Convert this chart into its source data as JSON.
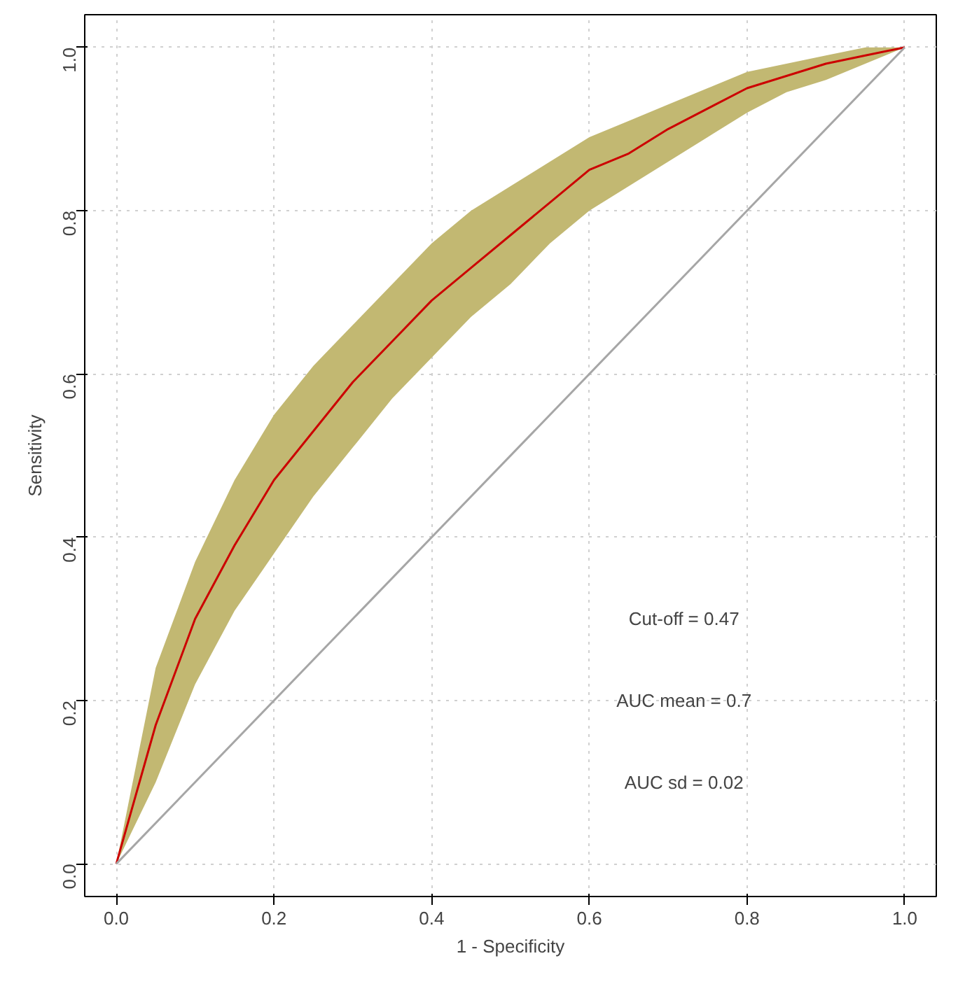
{
  "chart_data": {
    "type": "line",
    "xlabel": "1 - Specificity",
    "ylabel": "Sensitivity",
    "x": [
      0,
      0.05,
      0.1,
      0.15,
      0.2,
      0.25,
      0.3,
      0.35,
      0.4,
      0.45,
      0.5,
      0.55,
      0.6,
      0.65,
      0.7,
      0.75,
      0.8,
      0.85,
      0.9,
      0.95,
      1
    ],
    "xlim": [
      -0.04,
      1.04
    ],
    "ylim": [
      -0.04,
      1.04
    ],
    "xticks": [
      {
        "value": 0,
        "label": "0.0"
      },
      0.2,
      0.4,
      0.6,
      0.8,
      {
        "value": 1,
        "label": "1.0"
      }
    ],
    "yticks": [
      {
        "value": 0,
        "label": "0.0"
      },
      0.2,
      0.4,
      0.6,
      0.8,
      {
        "value": 1,
        "label": "1.0"
      }
    ],
    "grid": true,
    "marker": "none",
    "line_style": "solid",
    "series": [
      {
        "color": "#cc0000",
        "values": [
          0,
          0.17,
          0.3,
          0.39,
          0.47,
          0.53,
          0.59,
          0.64,
          0.69,
          0.73,
          0.77,
          0.81,
          0.85,
          0.87,
          0.9,
          0.925,
          0.95,
          0.965,
          0.98,
          0.99,
          1
        ],
        "lower": [
          0,
          0.1,
          0.22,
          0.31,
          0.38,
          0.45,
          0.51,
          0.57,
          0.62,
          0.67,
          0.71,
          0.76,
          0.8,
          0.83,
          0.86,
          0.89,
          0.92,
          0.945,
          0.96,
          0.98,
          1
        ],
        "upper": [
          0,
          0.24,
          0.37,
          0.47,
          0.55,
          0.61,
          0.66,
          0.71,
          0.76,
          0.8,
          0.83,
          0.86,
          0.89,
          0.91,
          0.93,
          0.95,
          0.97,
          0.98,
          0.99,
          1,
          1
        ]
      },
      {
        "type": "line",
        "color": "#a6a6a6",
        "x": [
          0,
          1
        ],
        "values": [
          0,
          1
        ]
      }
    ],
    "annotations": [
      "Cut-off = 0.47",
      "AUC mean = 0.7",
      "AUC sd = 0.02"
    ]
  }
}
